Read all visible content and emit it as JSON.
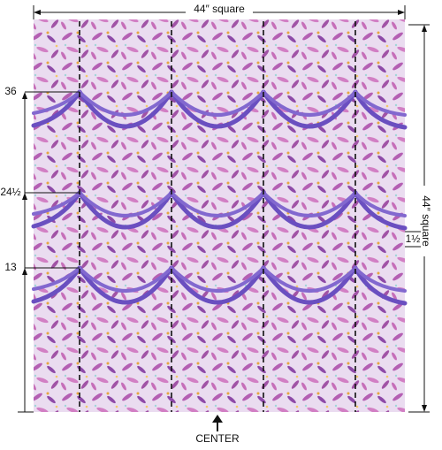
{
  "dimensions": {
    "width_label": "44″ square",
    "height_label": "44″ square"
  },
  "marks": [
    {
      "label": "36"
    },
    {
      "label": "24½"
    },
    {
      "label": "13"
    }
  ],
  "side_mark": "1½",
  "center_label": "CENTER"
}
